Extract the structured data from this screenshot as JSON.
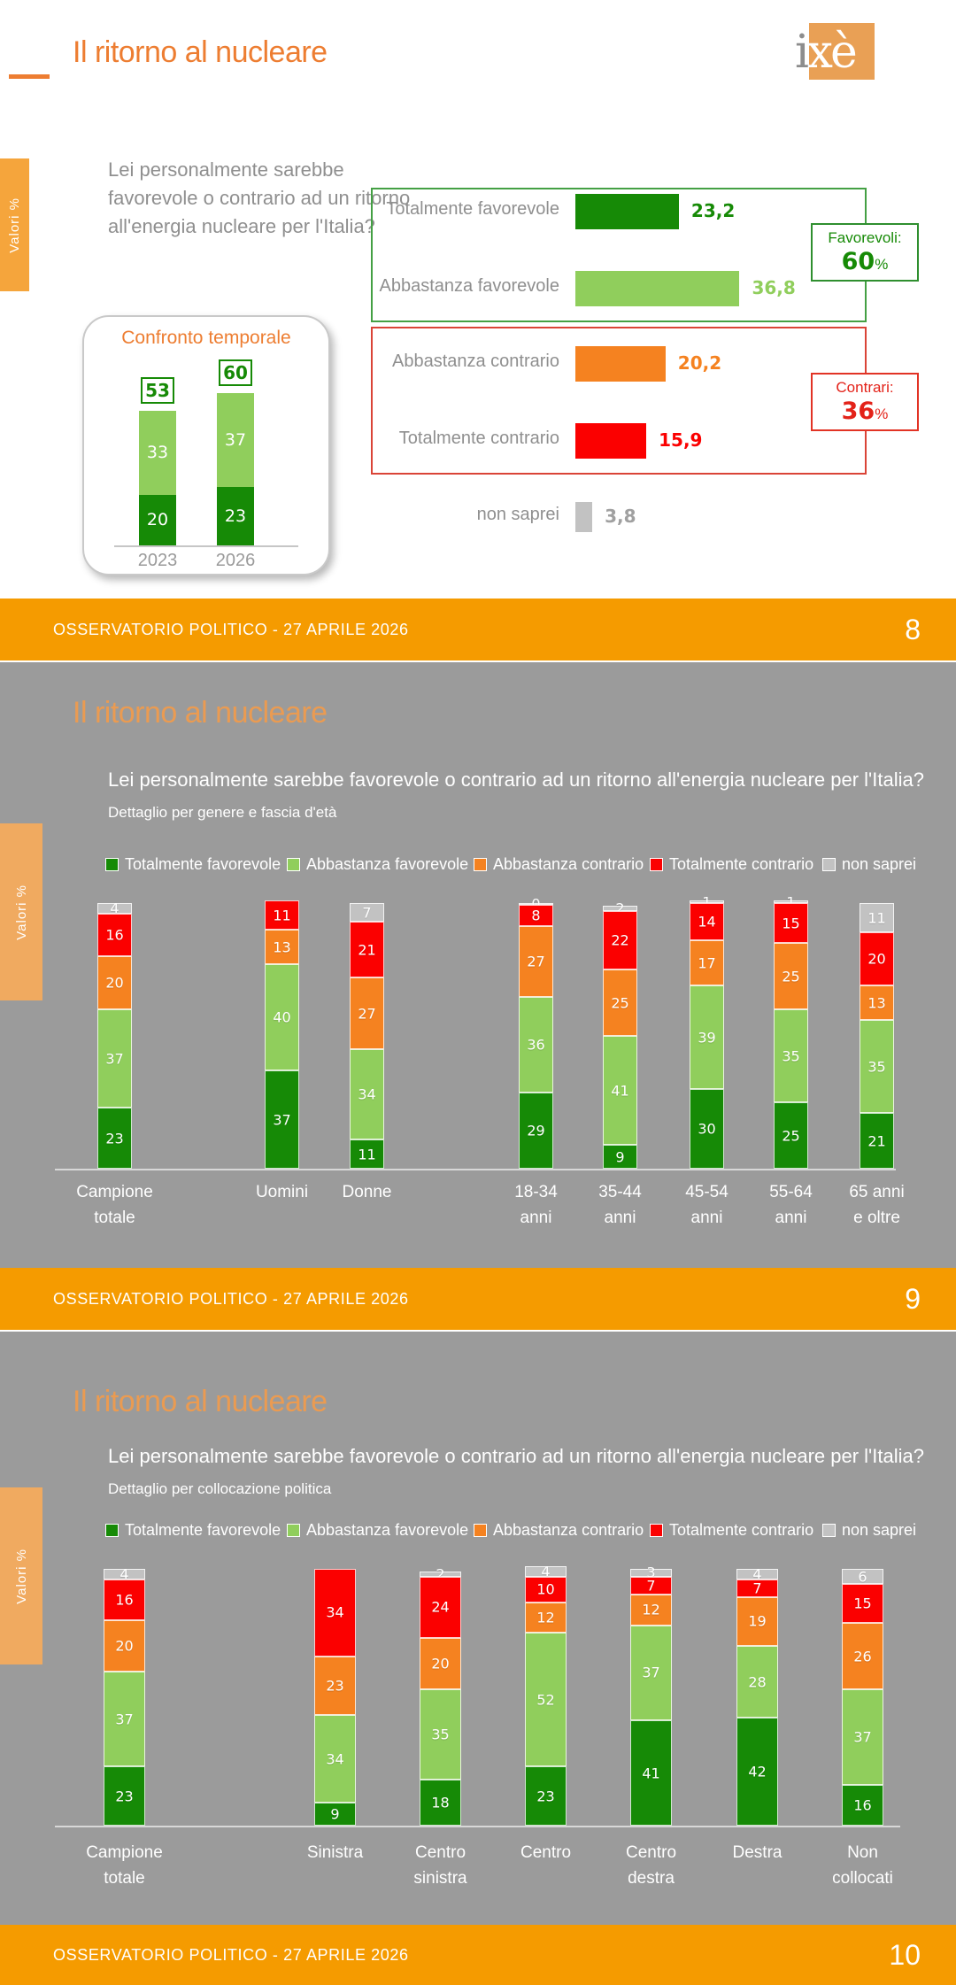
{
  "slides": {
    "s1": {
      "title": "Il ritorno al nucleare",
      "question_lines": [
        "Lei personalmente sarebbe",
        "favorevole o contrario ad un ritorno",
        "all'energia nucleare per l'Italia?"
      ],
      "valori_tab": "Valori %",
      "logo_i": "i",
      "logo_xe": "xè",
      "favorevoli_label": "Favorevoli:",
      "favorevoli_value": "60",
      "contrari_label": "Contrari:",
      "contrari_value": "36",
      "percent_sign": "%"
    },
    "s2": {
      "title": "Il ritorno al nucleare",
      "question": "Lei personalmente sarebbe favorevole o contrario ad un ritorno all'energia nucleare per l'Italia?",
      "subtitle": "Dettaglio per genere e fascia d'età",
      "valori_tab": "Valori %"
    },
    "s3": {
      "title": "Il ritorno al nucleare",
      "question": "Lei personalmente sarebbe favorevole o contrario ad un ritorno all'energia nucleare per l'Italia?",
      "subtitle": "Dettaglio per collocazione politica",
      "valori_tab": "Valori %"
    }
  },
  "legend": [
    "Totalmente favorevole",
    "Abbastanza favorevole",
    "Abbastanza contrario",
    "Totalmente contrario",
    "non saprei"
  ],
  "colors": {
    "dark_green": "#168A06",
    "light_green": "#90CE5C",
    "orange": "#F58220",
    "red": "#FB0000",
    "gray": "#C2C2C2",
    "accent_orange": "#ED7D31",
    "footer_orange": "#F59B00",
    "slide_gray": "#9B9B9B",
    "text_gray": "#8F8F8F"
  },
  "footers": [
    {
      "text": "OSSERVATORIO POLITICO - 27 APRILE 2026",
      "page": "8"
    },
    {
      "text": "OSSERVATORIO POLITICO - 27 APRILE 2026",
      "page": "9"
    },
    {
      "text": "OSSERVATORIO POLITICO - 27 APRILE 2026",
      "page": "10"
    }
  ],
  "chart_data": [
    {
      "id": "opinione-complessiva",
      "type": "bar",
      "orientation": "horizontal",
      "categories": [
        "Totalmente favorevole",
        "Abbastanza favorevole",
        "Abbastanza contrario",
        "Totalmente contrario",
        "non saprei"
      ],
      "values": [
        23.2,
        36.8,
        20.2,
        15.9,
        3.8
      ],
      "value_labels": [
        "23,2",
        "36,8",
        "20,2",
        "15,9",
        "3,8"
      ],
      "series_colors": [
        "dark_green",
        "light_green",
        "orange",
        "red",
        "gray"
      ],
      "annotations": {
        "favorevoli": "60%",
        "contrari": "36%"
      },
      "xlim": [
        0,
        100
      ]
    },
    {
      "id": "confronto-temporale",
      "type": "bar",
      "stacked": true,
      "title": "Confronto temporale",
      "categories": [
        "2023",
        "2026"
      ],
      "series": [
        {
          "name": "Totalmente favorevole",
          "color": "dark_green",
          "values": [
            20,
            23
          ]
        },
        {
          "name": "Abbastanza favorevole",
          "color": "light_green",
          "values": [
            33,
            37
          ]
        }
      ],
      "totals": [
        53,
        60
      ],
      "ylim": [
        0,
        100
      ]
    },
    {
      "id": "dettaglio-genere-eta",
      "type": "bar",
      "stacked": true,
      "categories": [
        "Campione\ntotale",
        "Uomini",
        "Donne",
        "18-34\nanni",
        "35-44\nanni",
        "45-54\nanni",
        "55-64\nanni",
        "65 anni\ne oltre"
      ],
      "series": [
        {
          "name": "Totalmente favorevole",
          "color": "dark_green",
          "values": [
            23,
            37,
            11,
            29,
            9,
            30,
            25,
            21
          ]
        },
        {
          "name": "Abbastanza favorevole",
          "color": "light_green",
          "values": [
            37,
            40,
            34,
            36,
            41,
            39,
            35,
            35
          ]
        },
        {
          "name": "Abbastanza contrario",
          "color": "orange",
          "values": [
            20,
            13,
            27,
            27,
            25,
            17,
            25,
            13
          ]
        },
        {
          "name": "Totalmente contrario",
          "color": "red",
          "values": [
            16,
            11,
            21,
            8,
            22,
            14,
            15,
            20
          ]
        },
        {
          "name": "non saprei",
          "color": "gray",
          "values": [
            4,
            null,
            7,
            0,
            2,
            1,
            1,
            11
          ]
        }
      ],
      "ylim": [
        0,
        100
      ],
      "legend_position": "top"
    },
    {
      "id": "dettaglio-collocazione-politica",
      "type": "bar",
      "stacked": true,
      "categories": [
        "Campione\ntotale",
        "Sinistra",
        "Centro\nsinistra",
        "Centro",
        "Centro\ndestra",
        "Destra",
        "Non\ncollocati"
      ],
      "series": [
        {
          "name": "Totalmente favorevole",
          "color": "dark_green",
          "values": [
            23,
            9,
            18,
            23,
            41,
            42,
            16
          ]
        },
        {
          "name": "Abbastanza favorevole",
          "color": "light_green",
          "values": [
            37,
            34,
            35,
            52,
            37,
            28,
            37
          ]
        },
        {
          "name": "Abbastanza contrario",
          "color": "orange",
          "values": [
            20,
            23,
            20,
            12,
            12,
            19,
            26
          ]
        },
        {
          "name": "Totalmente contrario",
          "color": "red",
          "values": [
            16,
            34,
            24,
            10,
            7,
            7,
            15
          ]
        },
        {
          "name": "non saprei",
          "color": "gray",
          "values": [
            4,
            null,
            2,
            4,
            3,
            4,
            6
          ]
        }
      ],
      "ylim": [
        0,
        100
      ],
      "legend_position": "top"
    }
  ]
}
